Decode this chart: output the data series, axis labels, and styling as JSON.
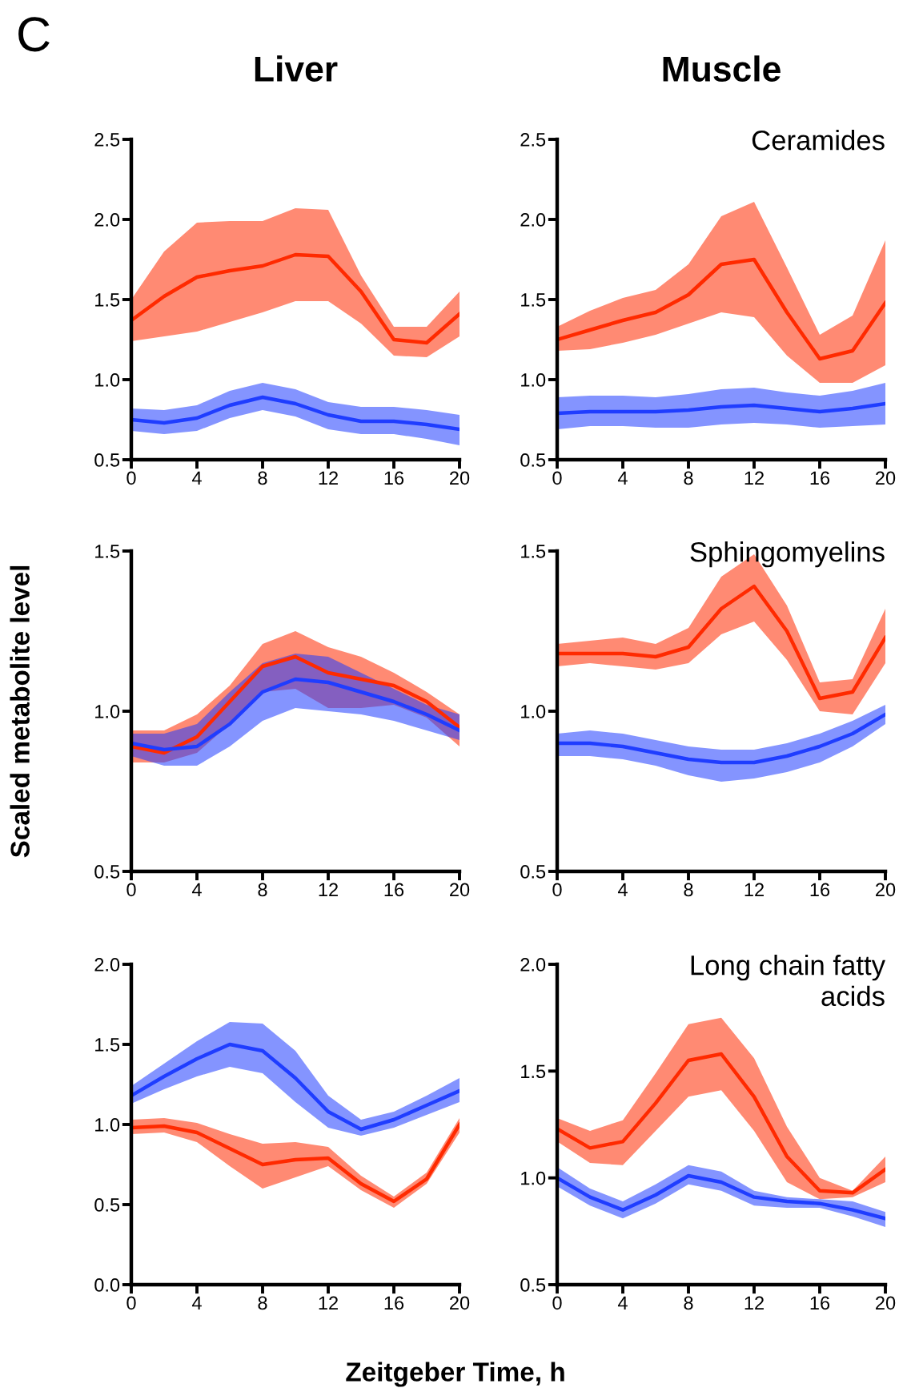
{
  "chart_data": [
    {
      "type": "line",
      "title": "Liver",
      "annotations": [
        "C"
      ],
      "x": [
        0,
        2,
        4,
        6,
        8,
        10,
        12,
        14,
        16,
        18,
        20
      ],
      "xlim": [
        0,
        20
      ],
      "xticks": [
        0,
        4,
        8,
        12,
        16,
        20
      ],
      "ylim": [
        0.5,
        2.5
      ],
      "yticks": [
        0.5,
        {
          "value": 1,
          "label": "1.0"
        },
        1.5,
        {
          "value": 2,
          "label": "2.0"
        },
        2.5
      ],
      "series": [
        {
          "color": "#ff2a00",
          "values": [
            1.37,
            1.52,
            1.64,
            1.68,
            1.71,
            1.78,
            1.77,
            1.55,
            1.25,
            1.23,
            1.41
          ],
          "lower": [
            1.24,
            1.27,
            1.3,
            1.36,
            1.42,
            1.49,
            1.49,
            1.35,
            1.15,
            1.14,
            1.27
          ],
          "upper": [
            1.5,
            1.8,
            1.98,
            1.99,
            1.99,
            2.07,
            2.06,
            1.65,
            1.33,
            1.33,
            1.55
          ]
        },
        {
          "color": "#1f3dff",
          "values": [
            0.75,
            0.73,
            0.76,
            0.84,
            0.89,
            0.85,
            0.78,
            0.74,
            0.74,
            0.72,
            0.69
          ],
          "lower": [
            0.68,
            0.66,
            0.68,
            0.76,
            0.81,
            0.77,
            0.69,
            0.66,
            0.66,
            0.63,
            0.59
          ],
          "upper": [
            0.82,
            0.81,
            0.84,
            0.93,
            0.98,
            0.94,
            0.86,
            0.83,
            0.83,
            0.81,
            0.78
          ]
        }
      ]
    },
    {
      "type": "line",
      "title": "Muscle",
      "subtitle": "Ceramides",
      "x": [
        0,
        2,
        4,
        6,
        8,
        10,
        12,
        14,
        16,
        18,
        20
      ],
      "xlim": [
        0,
        20
      ],
      "xticks": [
        0,
        4,
        8,
        12,
        16,
        20
      ],
      "ylim": [
        0.5,
        2.5
      ],
      "yticks": [
        0.5,
        {
          "value": 1,
          "label": "1.0"
        },
        1.5,
        {
          "value": 2,
          "label": "2.0"
        },
        2.5
      ],
      "series": [
        {
          "color": "#ff2a00",
          "values": [
            1.25,
            1.31,
            1.37,
            1.42,
            1.53,
            1.72,
            1.75,
            1.42,
            1.13,
            1.18,
            1.48
          ],
          "lower": [
            1.18,
            1.19,
            1.23,
            1.28,
            1.35,
            1.42,
            1.39,
            1.15,
            0.98,
            0.98,
            1.09
          ],
          "upper": [
            1.33,
            1.43,
            1.51,
            1.56,
            1.72,
            2.02,
            2.11,
            1.7,
            1.28,
            1.4,
            1.87
          ]
        },
        {
          "color": "#1f3dff",
          "values": [
            0.79,
            0.8,
            0.8,
            0.8,
            0.81,
            0.83,
            0.84,
            0.82,
            0.8,
            0.82,
            0.85
          ],
          "lower": [
            0.69,
            0.71,
            0.71,
            0.7,
            0.7,
            0.72,
            0.73,
            0.72,
            0.7,
            0.71,
            0.72
          ],
          "upper": [
            0.89,
            0.9,
            0.9,
            0.89,
            0.91,
            0.94,
            0.95,
            0.92,
            0.9,
            0.93,
            0.98
          ]
        }
      ]
    },
    {
      "type": "line",
      "ylabel": "Scaled metabolite level",
      "x": [
        0,
        2,
        4,
        6,
        8,
        10,
        12,
        14,
        16,
        18,
        20
      ],
      "xlim": [
        0,
        20
      ],
      "xticks": [
        0,
        4,
        8,
        12,
        16,
        20
      ],
      "ylim": [
        0.5,
        1.5
      ],
      "yticks": [
        0.5,
        {
          "value": 1,
          "label": "1.0"
        },
        1.5
      ],
      "series": [
        {
          "color": "#ff2a00",
          "values": [
            0.89,
            0.87,
            0.92,
            1.03,
            1.14,
            1.17,
            1.12,
            1.1,
            1.08,
            1.03,
            0.95
          ],
          "lower": [
            0.84,
            0.84,
            0.87,
            0.96,
            1.06,
            1.07,
            1.01,
            1.01,
            1.02,
            0.98,
            0.89
          ],
          "upper": [
            0.94,
            0.94,
            0.99,
            1.08,
            1.21,
            1.25,
            1.2,
            1.17,
            1.12,
            1.06,
            0.99
          ]
        },
        {
          "color": "#1f3dff",
          "values": [
            0.9,
            0.88,
            0.89,
            0.96,
            1.06,
            1.1,
            1.09,
            1.06,
            1.03,
            0.99,
            0.94
          ],
          "lower": [
            0.86,
            0.83,
            0.83,
            0.89,
            0.97,
            1.01,
            1.0,
            0.99,
            0.97,
            0.94,
            0.91
          ],
          "upper": [
            0.93,
            0.93,
            0.96,
            1.06,
            1.15,
            1.18,
            1.17,
            1.12,
            1.07,
            1.02,
            0.99
          ]
        }
      ]
    },
    {
      "type": "line",
      "subtitle": "Sphingomyelins",
      "x": [
        0,
        2,
        4,
        6,
        8,
        10,
        12,
        14,
        16,
        18,
        20
      ],
      "xlim": [
        0,
        20
      ],
      "xticks": [
        0,
        4,
        8,
        12,
        16,
        20
      ],
      "ylim": [
        0.5,
        1.5
      ],
      "yticks": [
        0.5,
        {
          "value": 1,
          "label": "1.0"
        },
        1.5
      ],
      "series": [
        {
          "color": "#ff2a00",
          "values": [
            1.18,
            1.18,
            1.18,
            1.17,
            1.2,
            1.32,
            1.39,
            1.25,
            1.04,
            1.06,
            1.23
          ],
          "lower": [
            1.14,
            1.15,
            1.14,
            1.13,
            1.15,
            1.24,
            1.28,
            1.16,
            1.0,
            0.99,
            1.15
          ],
          "upper": [
            1.21,
            1.22,
            1.23,
            1.21,
            1.26,
            1.42,
            1.49,
            1.33,
            1.09,
            1.1,
            1.32
          ]
        },
        {
          "color": "#1f3dff",
          "values": [
            0.9,
            0.9,
            0.89,
            0.87,
            0.85,
            0.84,
            0.84,
            0.86,
            0.89,
            0.93,
            0.99
          ],
          "lower": [
            0.86,
            0.86,
            0.85,
            0.83,
            0.8,
            0.78,
            0.79,
            0.81,
            0.84,
            0.89,
            0.96
          ],
          "upper": [
            0.93,
            0.94,
            0.93,
            0.91,
            0.89,
            0.88,
            0.88,
            0.9,
            0.93,
            0.97,
            1.02
          ]
        }
      ]
    },
    {
      "type": "line",
      "xlabel": "Zeitgeber Time, h",
      "x": [
        0,
        2,
        4,
        6,
        8,
        10,
        12,
        14,
        16,
        18,
        20
      ],
      "xlim": [
        0,
        20
      ],
      "xticks": [
        0,
        4,
        8,
        12,
        16,
        20
      ],
      "ylim": [
        0,
        2
      ],
      "yticks": [
        {
          "value": 0,
          "label": "0.0"
        },
        0.5,
        {
          "value": 1,
          "label": "1.0"
        },
        1.5,
        {
          "value": 2,
          "label": "2.0"
        }
      ],
      "series": [
        {
          "color": "#1f3dff",
          "values": [
            1.18,
            1.3,
            1.41,
            1.5,
            1.46,
            1.29,
            1.08,
            0.97,
            1.03,
            1.12,
            1.21
          ],
          "lower": [
            1.13,
            1.22,
            1.3,
            1.36,
            1.32,
            1.14,
            0.98,
            0.93,
            0.98,
            1.06,
            1.14
          ],
          "upper": [
            1.24,
            1.38,
            1.52,
            1.64,
            1.63,
            1.46,
            1.18,
            1.03,
            1.08,
            1.18,
            1.29
          ]
        },
        {
          "color": "#ff2a00",
          "values": [
            0.98,
            0.99,
            0.95,
            0.85,
            0.75,
            0.78,
            0.79,
            0.63,
            0.52,
            0.66,
            1.0
          ],
          "lower": [
            0.94,
            0.95,
            0.89,
            0.74,
            0.6,
            0.67,
            0.74,
            0.59,
            0.48,
            0.63,
            0.95
          ],
          "upper": [
            1.03,
            1.04,
            1.01,
            0.94,
            0.88,
            0.89,
            0.86,
            0.68,
            0.55,
            0.7,
            1.04
          ]
        }
      ]
    },
    {
      "type": "line",
      "subtitle": "Long chain fatty\nacids",
      "x": [
        0,
        2,
        4,
        6,
        8,
        10,
        12,
        14,
        16,
        18,
        20
      ],
      "xlim": [
        0,
        20
      ],
      "xticks": [
        0,
        4,
        8,
        12,
        16,
        20
      ],
      "ylim": [
        0.5,
        2
      ],
      "yticks": [
        0.5,
        {
          "value": 1,
          "label": "1.0"
        },
        1.5,
        {
          "value": 2,
          "label": "2.0"
        }
      ],
      "series": [
        {
          "color": "#ff2a00",
          "values": [
            1.23,
            1.14,
            1.17,
            1.35,
            1.55,
            1.58,
            1.38,
            1.1,
            0.94,
            0.93,
            1.04
          ],
          "lower": [
            1.17,
            1.07,
            1.06,
            1.22,
            1.38,
            1.41,
            1.22,
            0.98,
            0.9,
            0.91,
            0.98
          ],
          "upper": [
            1.28,
            1.22,
            1.27,
            1.49,
            1.72,
            1.75,
            1.56,
            1.24,
            1.0,
            0.94,
            1.1
          ]
        },
        {
          "color": "#1f3dff",
          "values": [
            1.0,
            0.91,
            0.85,
            0.92,
            1.01,
            0.98,
            0.91,
            0.89,
            0.88,
            0.85,
            0.81
          ],
          "lower": [
            0.96,
            0.87,
            0.81,
            0.88,
            0.97,
            0.94,
            0.87,
            0.86,
            0.86,
            0.82,
            0.77
          ],
          "upper": [
            1.05,
            0.95,
            0.89,
            0.97,
            1.06,
            1.03,
            0.94,
            0.91,
            0.9,
            0.89,
            0.84
          ]
        }
      ]
    }
  ]
}
